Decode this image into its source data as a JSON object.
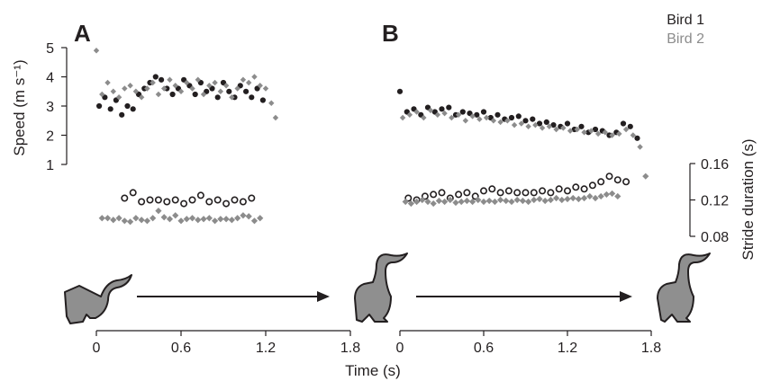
{
  "chart_data": {
    "type": "scatter",
    "legend": {
      "placement": "top-right",
      "entries": [
        "Bird 1",
        "Bird 2"
      ]
    },
    "colors": {
      "bird1": "#231f20",
      "bird2": "#8c8c8c"
    },
    "panels": [
      {
        "label": "A"
      },
      {
        "label": "B"
      }
    ],
    "speed_axis": {
      "ylabel": "Speed (m s⁻¹)",
      "ylim": [
        1,
        5
      ],
      "ticks": [
        "1",
        "2",
        "3",
        "4",
        "5"
      ]
    },
    "stride_axis": {
      "ylabel": "Stride duration (s)",
      "ylim": [
        0.08,
        0.16
      ],
      "ticks": [
        "0.08",
        "0.12",
        "0.16"
      ]
    },
    "x_axis": {
      "xlabel": "Time (s)",
      "xlim": [
        0,
        1.8
      ],
      "ticks": [
        "0",
        "0.6",
        "1.2",
        "1.8"
      ]
    },
    "series": [
      {
        "name": "Bird 1",
        "panel": "A",
        "quantity": "speed",
        "x": [
          0.02,
          0.06,
          0.1,
          0.14,
          0.18,
          0.22,
          0.26,
          0.3,
          0.34,
          0.38,
          0.42,
          0.46,
          0.5,
          0.54,
          0.58,
          0.62,
          0.66,
          0.7,
          0.74,
          0.78,
          0.82,
          0.86,
          0.9,
          0.94,
          0.98,
          1.02,
          1.06,
          1.1,
          1.14,
          1.18
        ],
        "values": [
          3.0,
          3.3,
          2.9,
          3.2,
          2.7,
          3.0,
          2.9,
          3.4,
          3.6,
          3.8,
          4.0,
          3.9,
          3.6,
          3.4,
          3.6,
          3.9,
          3.7,
          3.4,
          3.8,
          3.5,
          3.6,
          3.3,
          3.8,
          3.5,
          3.3,
          3.7,
          3.5,
          3.3,
          3.6,
          3.2
        ]
      },
      {
        "name": "Bird 2",
        "panel": "A",
        "quantity": "speed",
        "x": [
          0.0,
          0.04,
          0.08,
          0.12,
          0.16,
          0.2,
          0.24,
          0.28,
          0.32,
          0.36,
          0.4,
          0.44,
          0.48,
          0.52,
          0.56,
          0.6,
          0.64,
          0.68,
          0.72,
          0.76,
          0.8,
          0.84,
          0.88,
          0.92,
          0.96,
          1.0,
          1.04,
          1.08,
          1.12,
          1.16,
          1.2,
          1.24,
          1.27
        ],
        "values": [
          4.9,
          3.4,
          3.8,
          3.5,
          3.3,
          3.6,
          3.7,
          3.5,
          3.3,
          3.6,
          3.8,
          3.4,
          3.6,
          3.9,
          3.7,
          3.5,
          3.8,
          3.6,
          3.9,
          3.4,
          3.7,
          3.8,
          3.5,
          3.7,
          3.3,
          3.6,
          3.9,
          3.8,
          4.0,
          3.7,
          3.6,
          3.1,
          2.6
        ]
      },
      {
        "name": "Bird 1",
        "panel": "B",
        "quantity": "speed",
        "x": [
          0.0,
          0.05,
          0.1,
          0.15,
          0.2,
          0.25,
          0.3,
          0.35,
          0.4,
          0.45,
          0.5,
          0.55,
          0.6,
          0.65,
          0.7,
          0.75,
          0.8,
          0.85,
          0.9,
          0.95,
          1.0,
          1.05,
          1.1,
          1.15,
          1.2,
          1.25,
          1.3,
          1.35,
          1.4,
          1.45,
          1.5,
          1.55,
          1.6,
          1.65,
          1.7
        ],
        "values": [
          3.5,
          2.8,
          2.9,
          2.7,
          2.95,
          2.8,
          2.9,
          2.95,
          2.7,
          2.8,
          2.75,
          2.7,
          2.8,
          2.6,
          2.7,
          2.55,
          2.6,
          2.65,
          2.5,
          2.55,
          2.4,
          2.45,
          2.35,
          2.3,
          2.4,
          2.2,
          2.3,
          2.1,
          2.2,
          2.15,
          2.0,
          2.1,
          2.4,
          2.3,
          1.9
        ]
      },
      {
        "name": "Bird 2",
        "panel": "B",
        "quantity": "speed",
        "x": [
          0.02,
          0.07,
          0.12,
          0.17,
          0.22,
          0.27,
          0.32,
          0.37,
          0.42,
          0.47,
          0.52,
          0.57,
          0.62,
          0.67,
          0.72,
          0.77,
          0.82,
          0.87,
          0.92,
          0.97,
          1.02,
          1.07,
          1.12,
          1.17,
          1.22,
          1.27,
          1.32,
          1.37,
          1.42,
          1.47,
          1.52,
          1.57,
          1.62,
          1.67,
          1.72
        ],
        "values": [
          2.6,
          2.7,
          2.8,
          2.6,
          2.85,
          2.7,
          2.75,
          2.6,
          2.7,
          2.5,
          2.65,
          2.55,
          2.6,
          2.5,
          2.45,
          2.5,
          2.35,
          2.4,
          2.3,
          2.35,
          2.25,
          2.3,
          2.2,
          2.25,
          2.15,
          2.2,
          2.1,
          2.15,
          2.05,
          2.1,
          2.0,
          2.05,
          2.2,
          2.0,
          1.6
        ]
      },
      {
        "name": "Bird 1",
        "panel": "A",
        "quantity": "stride_duration",
        "x": [
          0.2,
          0.26,
          0.32,
          0.38,
          0.44,
          0.5,
          0.56,
          0.62,
          0.68,
          0.74,
          0.8,
          0.86,
          0.92,
          0.98,
          1.04,
          1.1
        ],
        "values": [
          0.122,
          0.128,
          0.118,
          0.12,
          0.12,
          0.118,
          0.12,
          0.116,
          0.12,
          0.125,
          0.118,
          0.12,
          0.116,
          0.12,
          0.118,
          0.122
        ]
      },
      {
        "name": "Bird 2",
        "panel": "A",
        "quantity": "stride_duration",
        "x": [
          0.04,
          0.08,
          0.12,
          0.16,
          0.2,
          0.24,
          0.28,
          0.32,
          0.36,
          0.4,
          0.44,
          0.48,
          0.52,
          0.56,
          0.6,
          0.64,
          0.68,
          0.72,
          0.76,
          0.8,
          0.84,
          0.88,
          0.92,
          0.96,
          1.0,
          1.04,
          1.08,
          1.12,
          1.16
        ],
        "values": [
          0.1,
          0.1,
          0.098,
          0.1,
          0.097,
          0.096,
          0.1,
          0.098,
          0.097,
          0.1,
          0.108,
          0.101,
          0.099,
          0.103,
          0.097,
          0.099,
          0.1,
          0.098,
          0.099,
          0.1,
          0.097,
          0.099,
          0.099,
          0.098,
          0.1,
          0.103,
          0.102,
          0.097,
          0.1
        ]
      },
      {
        "name": "Bird 1",
        "panel": "B",
        "quantity": "stride_duration",
        "x": [
          0.06,
          0.12,
          0.18,
          0.24,
          0.3,
          0.36,
          0.42,
          0.48,
          0.54,
          0.6,
          0.66,
          0.72,
          0.78,
          0.84,
          0.9,
          0.96,
          1.02,
          1.08,
          1.14,
          1.2,
          1.26,
          1.32,
          1.38,
          1.44,
          1.5,
          1.56,
          1.62
        ],
        "values": [
          0.122,
          0.12,
          0.124,
          0.126,
          0.128,
          0.122,
          0.126,
          0.128,
          0.124,
          0.13,
          0.132,
          0.128,
          0.13,
          0.128,
          0.128,
          0.128,
          0.13,
          0.128,
          0.132,
          0.13,
          0.134,
          0.132,
          0.136,
          0.14,
          0.146,
          0.142,
          0.14
        ]
      },
      {
        "name": "Bird 2",
        "panel": "B",
        "quantity": "stride_duration",
        "x": [
          0.04,
          0.08,
          0.12,
          0.16,
          0.2,
          0.24,
          0.28,
          0.32,
          0.36,
          0.4,
          0.44,
          0.48,
          0.52,
          0.56,
          0.6,
          0.64,
          0.68,
          0.72,
          0.76,
          0.8,
          0.84,
          0.88,
          0.92,
          0.96,
          1.0,
          1.04,
          1.08,
          1.12,
          1.16,
          1.2,
          1.24,
          1.28,
          1.32,
          1.36,
          1.4,
          1.44,
          1.48,
          1.52,
          1.56,
          1.76
        ],
        "values": [
          0.118,
          0.116,
          0.118,
          0.12,
          0.118,
          0.116,
          0.119,
          0.118,
          0.12,
          0.117,
          0.118,
          0.119,
          0.118,
          0.12,
          0.118,
          0.119,
          0.118,
          0.12,
          0.119,
          0.118,
          0.12,
          0.119,
          0.118,
          0.12,
          0.121,
          0.119,
          0.12,
          0.122,
          0.12,
          0.121,
          0.122,
          0.121,
          0.122,
          0.124,
          0.122,
          0.124,
          0.126,
          0.127,
          0.124,
          0.146
        ]
      }
    ]
  }
}
